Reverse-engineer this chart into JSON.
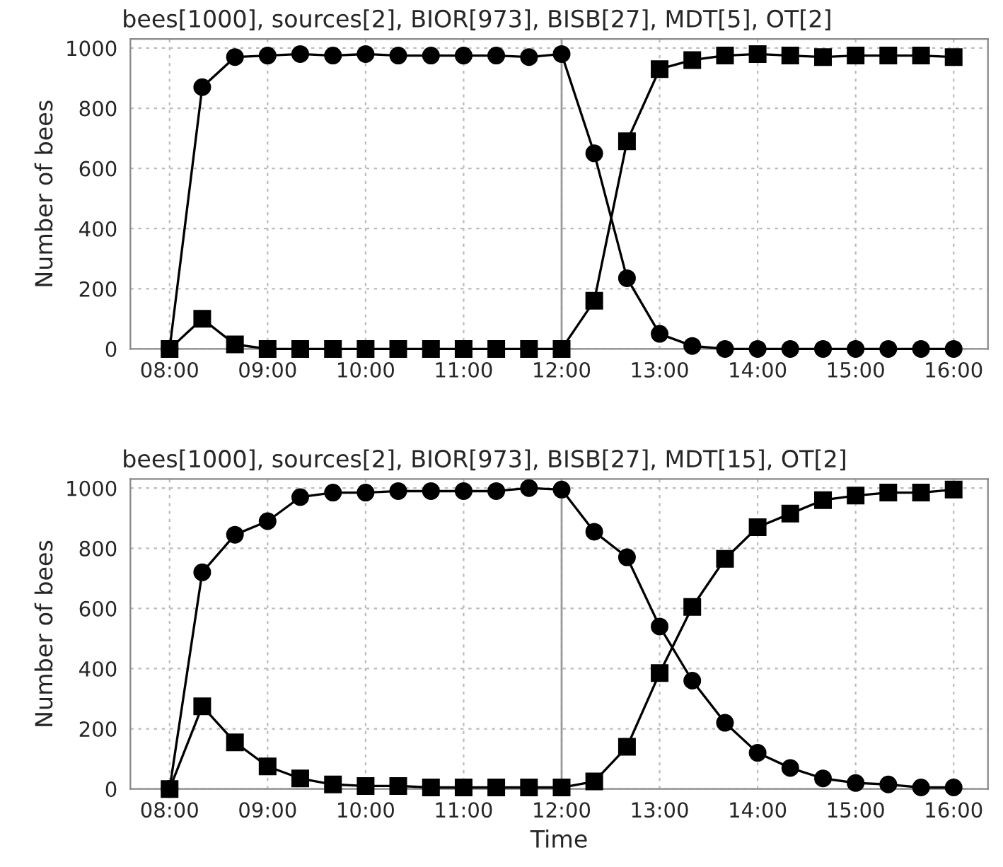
{
  "chart_data": [
    {
      "type": "line",
      "title": "bees[1000], sources[2], BIOR[973], BISB[27], MDT[5], OT[2]",
      "ylabel": "Number of bees",
      "x": [
        8,
        8.333,
        8.667,
        9,
        9.333,
        9.667,
        10,
        10.333,
        10.667,
        11,
        11.333,
        11.667,
        12,
        12.333,
        12.667,
        13,
        13.333,
        13.667,
        14,
        14.333,
        14.667,
        15,
        15.333,
        15.667,
        16
      ],
      "series": [
        {
          "color": "#000000",
          "marker": "square",
          "values": [
            0,
            100,
            15,
            0,
            0,
            0,
            0,
            0,
            0,
            0,
            0,
            0,
            0,
            160,
            690,
            930,
            960,
            975,
            980,
            975,
            970,
            975,
            975,
            975,
            970
          ]
        },
        {
          "color": "#000000",
          "marker": "circle",
          "values": [
            0,
            870,
            970,
            975,
            980,
            975,
            980,
            975,
            975,
            975,
            975,
            970,
            980,
            650,
            235,
            50,
            10,
            0,
            0,
            0,
            0,
            0,
            0,
            0,
            0
          ]
        }
      ],
      "xlim": [
        7.6,
        16.35
      ],
      "xticks": [
        {
          "value": 8,
          "label": "08:00"
        },
        {
          "value": 9,
          "label": "09:00"
        },
        {
          "value": 10,
          "label": "10:00"
        },
        {
          "value": 11,
          "label": "11:00"
        },
        {
          "value": 12,
          "label": "12:00"
        },
        {
          "value": 13,
          "label": "13:00"
        },
        {
          "value": 14,
          "label": "14:00"
        },
        {
          "value": 15,
          "label": "15:00"
        },
        {
          "value": 16,
          "label": "16:00"
        }
      ],
      "ylim": [
        0,
        1030
      ],
      "yticks": [
        0,
        200,
        400,
        600,
        800,
        1000
      ],
      "grid": true,
      "line_style": "solid",
      "ref_lines": [
        {
          "axis": "x",
          "value": 12,
          "color": "#999999"
        }
      ]
    },
    {
      "type": "line",
      "title": "bees[1000], sources[2], BIOR[973], BISB[27], MDT[15], OT[2]",
      "ylabel": "Number of bees",
      "xlabel": "Time",
      "x": [
        8,
        8.333,
        8.667,
        9,
        9.333,
        9.667,
        10,
        10.333,
        10.667,
        11,
        11.333,
        11.667,
        12,
        12.333,
        12.667,
        13,
        13.333,
        13.667,
        14,
        14.333,
        14.667,
        15,
        15.333,
        15.667,
        16
      ],
      "series": [
        {
          "color": "#000000",
          "marker": "circle",
          "values": [
            0,
            720,
            845,
            890,
            970,
            985,
            985,
            990,
            990,
            990,
            990,
            1000,
            995,
            855,
            770,
            540,
            360,
            220,
            120,
            70,
            35,
            20,
            15,
            5,
            5
          ]
        },
        {
          "color": "#000000",
          "marker": "square",
          "values": [
            0,
            275,
            155,
            75,
            35,
            15,
            10,
            10,
            5,
            5,
            5,
            5,
            5,
            25,
            140,
            385,
            605,
            765,
            870,
            915,
            960,
            975,
            985,
            985,
            995
          ]
        }
      ],
      "xlim": [
        7.6,
        16.35
      ],
      "xticks": [
        {
          "value": 8,
          "label": "08:00"
        },
        {
          "value": 9,
          "label": "09:00"
        },
        {
          "value": 10,
          "label": "10:00"
        },
        {
          "value": 11,
          "label": "11:00"
        },
        {
          "value": 12,
          "label": "12:00"
        },
        {
          "value": 13,
          "label": "13:00"
        },
        {
          "value": 14,
          "label": "14:00"
        },
        {
          "value": 15,
          "label": "15:00"
        },
        {
          "value": 16,
          "label": "16:00"
        }
      ],
      "ylim": [
        0,
        1030
      ],
      "yticks": [
        0,
        200,
        400,
        600,
        800,
        1000
      ],
      "grid": true,
      "line_style": "solid",
      "ref_lines": [
        {
          "axis": "x",
          "value": 12,
          "color": "#999999"
        }
      ]
    }
  ]
}
